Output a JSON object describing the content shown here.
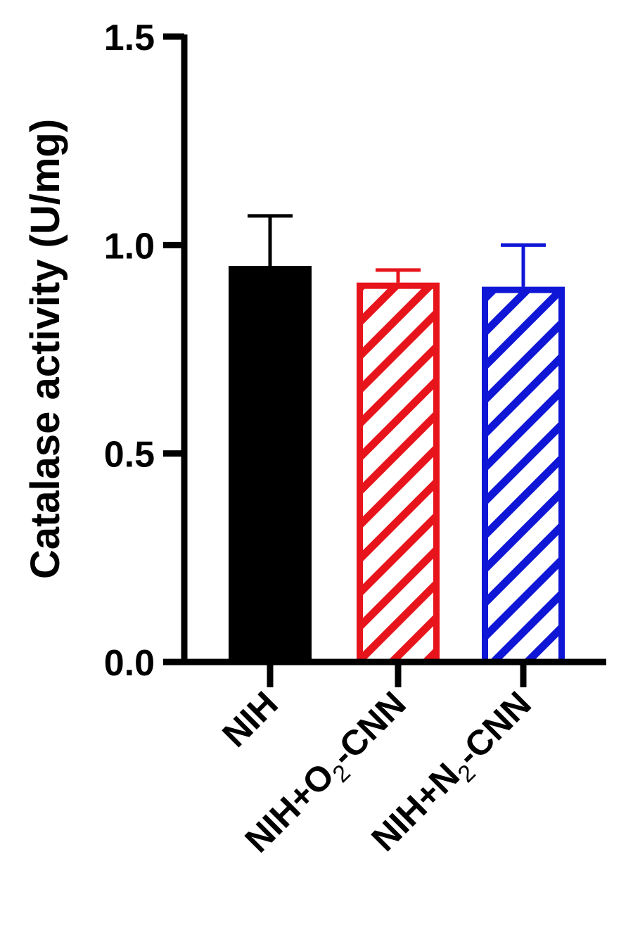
{
  "chart_data": {
    "type": "bar",
    "title": "",
    "xlabel": "",
    "ylabel": "Catalase activity (U/mg)",
    "ylim": [
      0,
      1.5
    ],
    "yticks": [
      "0.0",
      "0.5",
      "1.0",
      "1.5"
    ],
    "grid": false,
    "legend": "none",
    "categories": [
      {
        "base": "NIH",
        "sub": "",
        "tail": ""
      },
      {
        "base": "NIH+O",
        "sub": "2",
        "tail": "-CNN"
      },
      {
        "base": "NIH+N",
        "sub": "2",
        "tail": "-CNN"
      }
    ],
    "values": [
      0.95,
      0.91,
      0.9
    ],
    "errors": [
      0.12,
      0.03,
      0.1
    ],
    "colors": [
      "#000000",
      "#e8141b",
      "#1016d6"
    ],
    "fills": [
      "solid",
      "hatched",
      "hatched"
    ]
  }
}
